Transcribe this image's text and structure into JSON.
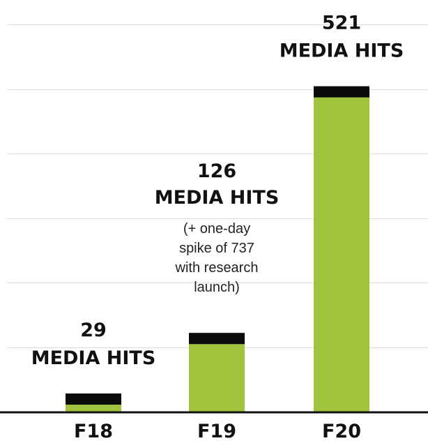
{
  "chart_data": {
    "type": "bar",
    "categories": [
      "F18",
      "F19",
      "F20"
    ],
    "values": [
      29,
      126,
      521
    ],
    "ylim": [
      0,
      620
    ],
    "grid": true,
    "data_labels": [
      {
        "number": "29",
        "unit": "MEDIA HITS"
      },
      {
        "number": "126",
        "unit": "MEDIA HITS"
      },
      {
        "number": "521",
        "unit": "MEDIA HITS"
      }
    ],
    "annotation": {
      "category": "F19",
      "lines": [
        "(+ one-day",
        "spike of 737",
        "with research",
        "launch)"
      ]
    },
    "colors": {
      "bar": "#a1c43f",
      "cap": "#0b0b0b",
      "grid": "#dddddd",
      "axis": "#111111"
    }
  }
}
